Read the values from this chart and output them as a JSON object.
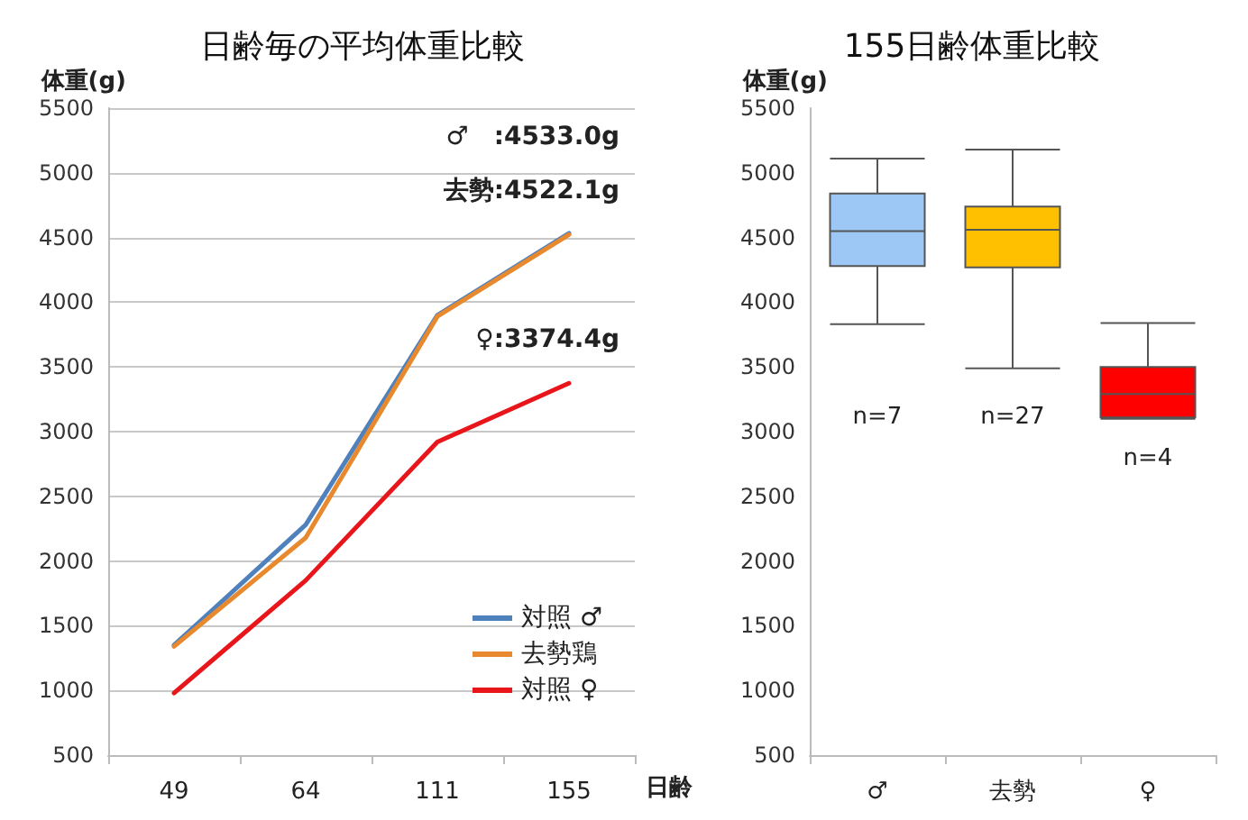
{
  "chart_data": [
    {
      "type": "line",
      "title": "日齢毎の平均体重比較",
      "xlabel": "日齢",
      "ylabel": "体重(g)",
      "categories": [
        "49",
        "64",
        "111",
        "155"
      ],
      "ylim": [
        500,
        5500
      ],
      "yticks": [
        500,
        1000,
        1500,
        2000,
        2500,
        3000,
        3500,
        4000,
        4500,
        5000,
        5500
      ],
      "grid": "y",
      "legend": "bottom right",
      "marker": "none",
      "series": [
        {
          "name": "対照 ♂",
          "color": "#4f81bd",
          "values": [
            1350,
            2280,
            3900,
            4533.0
          ]
        },
        {
          "name": "去勢鶏",
          "color": "#e8892e",
          "values": [
            1340,
            2180,
            3890,
            4522.1
          ]
        },
        {
          "name": "対照 ♀",
          "color": "#e8161b",
          "values": [
            980,
            1850,
            2920,
            3374.4
          ]
        }
      ],
      "annotations": [
        "♂　:4533.0g",
        "去勢:4522.1g",
        "♀:3374.4g"
      ]
    },
    {
      "type": "box",
      "title": "155日齢体重比較",
      "ylabel": "体重(g)",
      "categories": [
        "♂",
        "去勢",
        "♀"
      ],
      "ylim": [
        500,
        5500
      ],
      "yticks": [
        500,
        1000,
        1500,
        2000,
        2500,
        3000,
        3500,
        4000,
        4500,
        5000,
        5500
      ],
      "colors": [
        "#9dc8f5",
        "#ffc000",
        "#ff0000"
      ],
      "boxes": [
        {
          "low": 3830,
          "q1": 4280,
          "median": 4550,
          "q3": 4840,
          "high": 5110
        },
        {
          "low": 3490,
          "q1": 4270,
          "median": 4560,
          "q3": 4740,
          "high": 5180
        },
        {
          "low": 3100,
          "q1": 3110,
          "median": 3290,
          "q3": 3500,
          "high": 3840
        }
      ],
      "annotations": [
        "n=7",
        "n=27",
        "n=4"
      ]
    }
  ]
}
